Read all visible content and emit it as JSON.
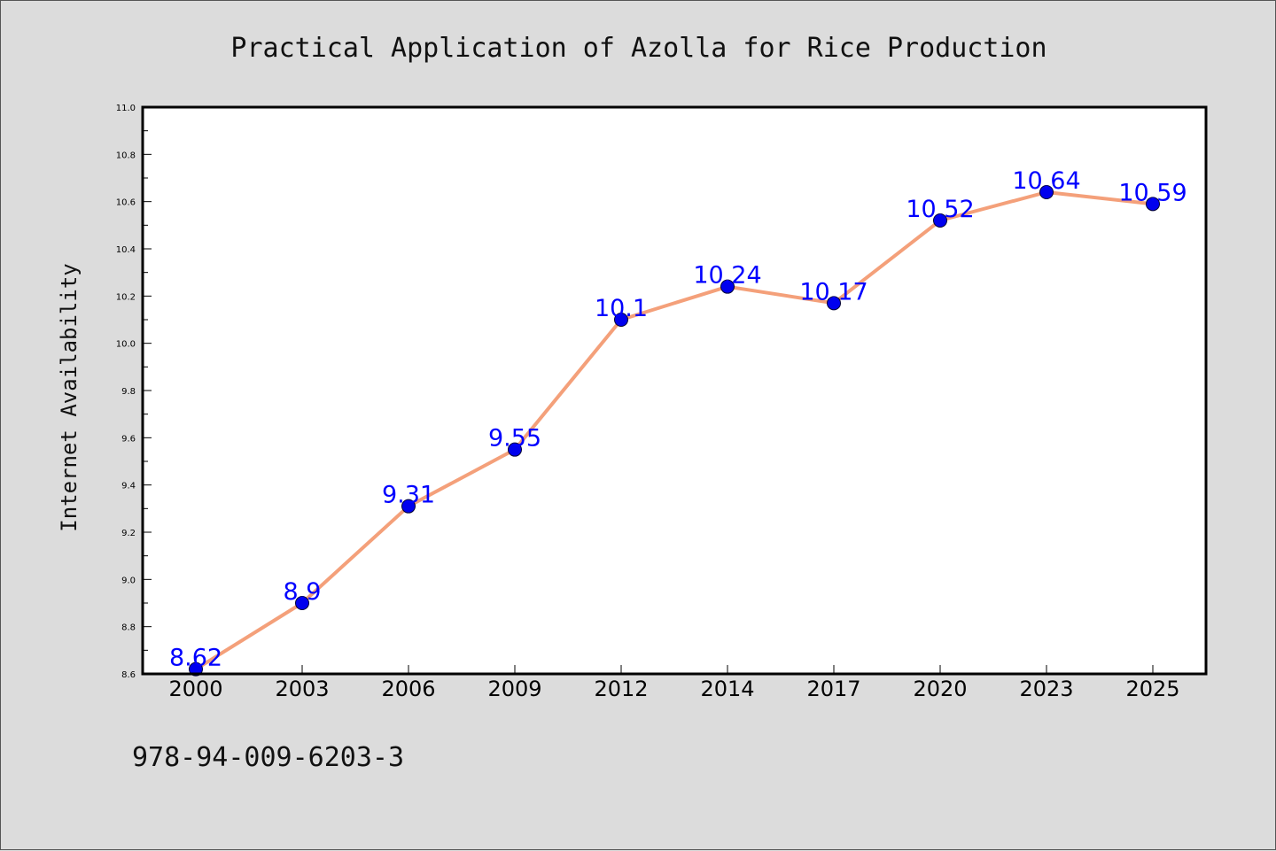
{
  "chart_data": {
    "type": "line",
    "title": "Practical Application of Azolla for Rice Production",
    "ylabel": "Internet Availability",
    "xlabel": "",
    "categories": [
      "2000",
      "2003",
      "2006",
      "2009",
      "2012",
      "2014",
      "2017",
      "2020",
      "2023",
      "2025"
    ],
    "values": [
      8.62,
      8.9,
      9.31,
      9.55,
      10.1,
      10.24,
      10.17,
      10.52,
      10.64,
      10.59
    ],
    "data_labels": [
      "8.62",
      "8.9",
      "9.31",
      "9.55",
      "10.1",
      "10.24",
      "10.17",
      "10.52",
      "10.64",
      "10.59"
    ],
    "ylim": [
      8.6,
      11.0
    ],
    "yticks": [
      "8.6",
      "8.8",
      "9.0",
      "9.2",
      "9.4",
      "9.6",
      "9.8",
      "10.0",
      "10.2",
      "10.4",
      "10.6",
      "10.8",
      "11.0"
    ],
    "grid": false,
    "legend": "none",
    "colors": {
      "line": "#f4a07a",
      "marker_fill": "#0000ee",
      "marker_edge": "#000033",
      "label": "#0000ff",
      "plot_bg": "#ffffff",
      "figure_bg": "#dcdcdc"
    }
  },
  "footer": {
    "text": "978-94-009-6203-3"
  }
}
